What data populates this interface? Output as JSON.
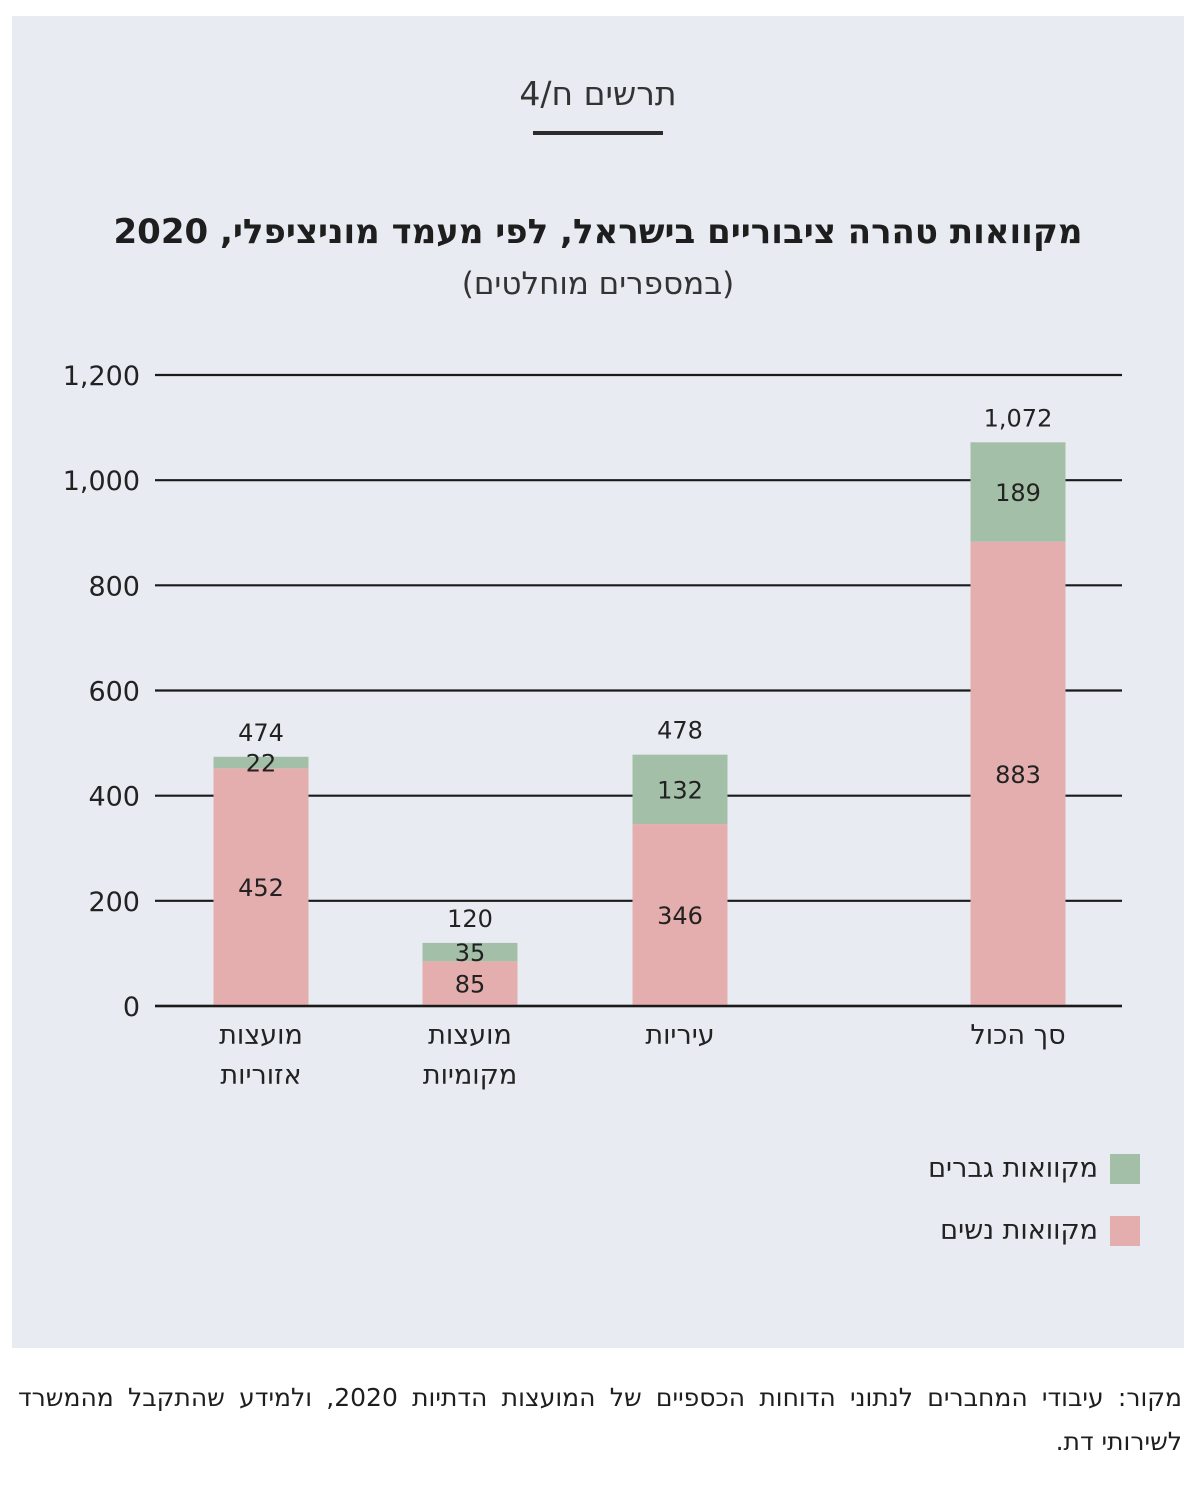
{
  "figure_label": "תרשים ח/4",
  "source": "מקור: עיבודי המחברים לנתוני הדוחות הכספיים של המועצות הדתיות 2020, ולמידע שהתקבל מהמשרד לשירותי דת.",
  "colors": {
    "men": "#a4bfa8",
    "women": "#e5aeae",
    "panel": "#e8ecf2",
    "grid": "#1a1a1a"
  },
  "chart_data": {
    "type": "bar",
    "stacked": true,
    "title": "מקוואות טהרה ציבוריים בישראל, לפי מעמד מוניציפלי, 2020",
    "subtitle": "(במספרים מוחלטים)",
    "categories": [
      "מועצות\nאזוריות",
      "מועצות\nמקומיות",
      "עיריות",
      "סך הכול"
    ],
    "series": [
      {
        "name": "מקוואות נשים",
        "color": "#e5aeae",
        "values": [
          452,
          85,
          346,
          883
        ]
      },
      {
        "name": "מקוואות גברים",
        "color": "#a4bfa8",
        "values": [
          22,
          35,
          132,
          189
        ]
      }
    ],
    "totals": [
      "474",
      "120",
      "478",
      "1,072"
    ],
    "value_labels": [
      [
        "452",
        "85",
        "346",
        "883"
      ],
      [
        "22",
        "35",
        "132",
        "189"
      ]
    ],
    "yticks": [
      0,
      200,
      400,
      600,
      800,
      1000,
      1200
    ],
    "ytick_labels": [
      "0",
      "200",
      "400",
      "600",
      "800",
      "1,000",
      "1,200"
    ],
    "ylim": [
      0,
      1200
    ],
    "grid": true,
    "legend": {
      "position": "bottom-right",
      "items": [
        "מקוואות גברים",
        "מקוואות נשים"
      ]
    }
  }
}
